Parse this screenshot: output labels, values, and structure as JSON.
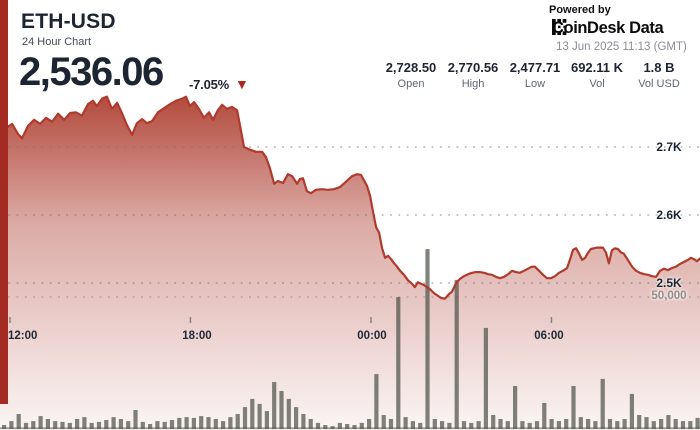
{
  "header": {
    "symbol": "ETH-USD",
    "subtitle": "24 Hour Chart",
    "price": "2,536.06",
    "change_pct": "-7.05%",
    "direction_icon": "▼",
    "powered_by": "Powered by",
    "brand": "CoinDesk Data",
    "timestamp": "13 Jun 2025 11:13 (GMT)"
  },
  "stats": [
    {
      "value": "2,728.50",
      "label": "Open"
    },
    {
      "value": "2,770.56",
      "label": "High"
    },
    {
      "value": "2,477.71",
      "label": "Low"
    },
    {
      "value": "692.11 K",
      "label": "Vol"
    },
    {
      "value": "1.8 B",
      "label": "Vol USD"
    }
  ],
  "colors": {
    "accent_red": "#a32b22",
    "price_line": "#b13a2c",
    "area_fill_base": "#aa3527",
    "volume_bar": "#4e5349",
    "navy_text": "#1d2533",
    "grid_dot": "#6e7580",
    "volume_grid_dot": "#958f90",
    "triangle_red": "#b1271c"
  },
  "chart_data": {
    "type": "area",
    "title": "ETH-USD 24 Hour Chart",
    "x_axis": {
      "labels": [
        "12:00",
        "18:00",
        "00:00",
        "06:00"
      ],
      "label_hours_from_start": [
        0,
        6,
        12,
        18
      ],
      "unit": "time (GMT)",
      "span_hours": 24
    },
    "y_axis_price": {
      "ticks": [
        "2.7K",
        "2.6K",
        "2.5K"
      ],
      "values": [
        2700,
        2600,
        2500
      ],
      "implied_range": [
        2455,
        2790
      ],
      "grid": "dotted"
    },
    "y_axis_volume": {
      "tick": "50,000",
      "value": 50000
    },
    "price_series": [
      [
        -0.33,
        2732
      ],
      [
        -0.13,
        2728
      ],
      [
        0.07,
        2734
      ],
      [
        0.27,
        2719
      ],
      [
        0.4,
        2713
      ],
      [
        0.6,
        2731
      ],
      [
        0.8,
        2740
      ],
      [
        1,
        2734
      ],
      [
        1.2,
        2743
      ],
      [
        1.4,
        2737
      ],
      [
        1.6,
        2749
      ],
      [
        1.8,
        2740
      ],
      [
        2,
        2750
      ],
      [
        2.19,
        2751
      ],
      [
        2.39,
        2746
      ],
      [
        2.59,
        2763
      ],
      [
        2.76,
        2768
      ],
      [
        2.89,
        2760
      ],
      [
        3.06,
        2771
      ],
      [
        3.22,
        2774
      ],
      [
        3.39,
        2756
      ],
      [
        3.56,
        2765
      ],
      [
        3.72,
        2750
      ],
      [
        3.89,
        2732
      ],
      [
        4.06,
        2718
      ],
      [
        4.22,
        2735
      ],
      [
        4.39,
        2741
      ],
      [
        4.55,
        2735
      ],
      [
        4.72,
        2738
      ],
      [
        4.92,
        2751
      ],
      [
        5.12,
        2757
      ],
      [
        5.32,
        2763
      ],
      [
        5.52,
        2768
      ],
      [
        5.72,
        2771
      ],
      [
        5.85,
        2774
      ],
      [
        5.98,
        2760
      ],
      [
        6.12,
        2766
      ],
      [
        6.28,
        2756
      ],
      [
        6.45,
        2743
      ],
      [
        6.62,
        2751
      ],
      [
        6.75,
        2740
      ],
      [
        6.91,
        2754
      ],
      [
        7.05,
        2762
      ],
      [
        7.21,
        2756
      ],
      [
        7.38,
        2759
      ],
      [
        7.55,
        2754
      ],
      [
        7.65,
        2731
      ],
      [
        7.78,
        2700
      ],
      [
        7.98,
        2696
      ],
      [
        8.18,
        2693
      ],
      [
        8.38,
        2693
      ],
      [
        8.51,
        2685
      ],
      [
        8.64,
        2669
      ],
      [
        8.78,
        2646
      ],
      [
        8.91,
        2650
      ],
      [
        9.08,
        2647
      ],
      [
        9.24,
        2660
      ],
      [
        9.38,
        2657
      ],
      [
        9.54,
        2646
      ],
      [
        9.64,
        2653
      ],
      [
        9.74,
        2654
      ],
      [
        9.87,
        2635
      ],
      [
        10.01,
        2632
      ],
      [
        10.17,
        2637
      ],
      [
        10.37,
        2638
      ],
      [
        10.57,
        2637
      ],
      [
        10.77,
        2638
      ],
      [
        10.97,
        2641
      ],
      [
        11.17,
        2649
      ],
      [
        11.37,
        2657
      ],
      [
        11.54,
        2660
      ],
      [
        11.67,
        2659
      ],
      [
        11.77,
        2651
      ],
      [
        11.87,
        2643
      ],
      [
        11.97,
        2628
      ],
      [
        12.07,
        2604
      ],
      [
        12.17,
        2582
      ],
      [
        12.27,
        2574
      ],
      [
        12.37,
        2551
      ],
      [
        12.47,
        2537
      ],
      [
        12.57,
        2540
      ],
      [
        12.67,
        2535
      ],
      [
        12.77,
        2529
      ],
      [
        12.87,
        2524
      ],
      [
        12.97,
        2518
      ],
      [
        13.1,
        2512
      ],
      [
        13.23,
        2504
      ],
      [
        13.36,
        2499
      ],
      [
        13.46,
        2494
      ],
      [
        13.56,
        2501
      ],
      [
        13.66,
        2499
      ],
      [
        13.76,
        2497
      ],
      [
        13.86,
        2494
      ],
      [
        13.96,
        2491
      ],
      [
        14.1,
        2485
      ],
      [
        14.23,
        2481
      ],
      [
        14.33,
        2478
      ],
      [
        14.46,
        2477
      ],
      [
        14.6,
        2484
      ],
      [
        14.69,
        2487
      ],
      [
        14.83,
        2500
      ],
      [
        14.96,
        2506
      ],
      [
        15.09,
        2510
      ],
      [
        15.23,
        2513
      ],
      [
        15.36,
        2515
      ],
      [
        15.49,
        2516
      ],
      [
        15.62,
        2516
      ],
      [
        15.76,
        2515
      ],
      [
        15.89,
        2513
      ],
      [
        16.02,
        2512
      ],
      [
        16.16,
        2509
      ],
      [
        16.29,
        2507
      ],
      [
        16.42,
        2509
      ],
      [
        16.56,
        2513
      ],
      [
        16.69,
        2518
      ],
      [
        16.82,
        2516
      ],
      [
        16.95,
        2515
      ],
      [
        17.09,
        2518
      ],
      [
        17.22,
        2521
      ],
      [
        17.35,
        2524
      ],
      [
        17.45,
        2524
      ],
      [
        17.59,
        2518
      ],
      [
        17.72,
        2512
      ],
      [
        17.85,
        2507
      ],
      [
        17.98,
        2507
      ],
      [
        18.12,
        2510
      ],
      [
        18.25,
        2515
      ],
      [
        18.38,
        2518
      ],
      [
        18.52,
        2522
      ],
      [
        18.62,
        2535
      ],
      [
        18.72,
        2549
      ],
      [
        18.82,
        2551
      ],
      [
        18.91,
        2544
      ],
      [
        19.02,
        2534
      ],
      [
        19.12,
        2537
      ],
      [
        19.21,
        2544
      ],
      [
        19.31,
        2550
      ],
      [
        19.41,
        2551
      ],
      [
        19.51,
        2552
      ],
      [
        19.61,
        2552
      ],
      [
        19.71,
        2552
      ],
      [
        19.81,
        2545
      ],
      [
        19.91,
        2529
      ],
      [
        20.01,
        2548
      ],
      [
        20.11,
        2551
      ],
      [
        20.21,
        2550
      ],
      [
        20.31,
        2545
      ],
      [
        20.41,
        2543
      ],
      [
        20.54,
        2534
      ],
      [
        20.68,
        2524
      ],
      [
        20.81,
        2518
      ],
      [
        20.94,
        2515
      ],
      [
        21.08,
        2513
      ],
      [
        21.21,
        2512
      ],
      [
        21.34,
        2510
      ],
      [
        21.48,
        2509
      ],
      [
        21.61,
        2518
      ],
      [
        21.74,
        2521
      ],
      [
        21.87,
        2519
      ],
      [
        22.01,
        2522
      ],
      [
        22.14,
        2524
      ],
      [
        22.27,
        2528
      ],
      [
        22.41,
        2531
      ],
      [
        22.54,
        2534
      ],
      [
        22.64,
        2537
      ],
      [
        22.74,
        2535
      ],
      [
        22.84,
        2532
      ],
      [
        22.94,
        2536
      ]
    ],
    "volume_series": {
      "interval_minutes": 15,
      "values": [
        1500,
        3000,
        5700,
        2300,
        3000,
        4900,
        3800,
        3000,
        2700,
        2300,
        3800,
        4500,
        2300,
        2700,
        3400,
        4500,
        3800,
        3000,
        7200,
        2700,
        1900,
        3000,
        2700,
        3400,
        4200,
        4500,
        4200,
        4900,
        4500,
        3800,
        3000,
        4500,
        5700,
        8300,
        11400,
        9500,
        6800,
        17800,
        14400,
        11400,
        8300,
        5700,
        3800,
        2300,
        1500,
        1100,
        2300,
        1900,
        1500,
        2300,
        3800,
        20800,
        5300,
        3800,
        50000,
        4500,
        3000,
        2300,
        68200,
        3800,
        3000,
        2300,
        56500,
        3000,
        2300,
        3000,
        38300,
        5300,
        3800,
        3000,
        16300,
        3000,
        2300,
        3000,
        9900,
        3800,
        3000,
        3800,
        16300,
        4500,
        3800,
        3000,
        19000,
        3800,
        3000,
        3800,
        13300,
        5300,
        4500,
        3000,
        3800,
        5300,
        3800,
        3000,
        3000,
        4200
      ]
    },
    "legend": "none",
    "grid_on": true
  }
}
